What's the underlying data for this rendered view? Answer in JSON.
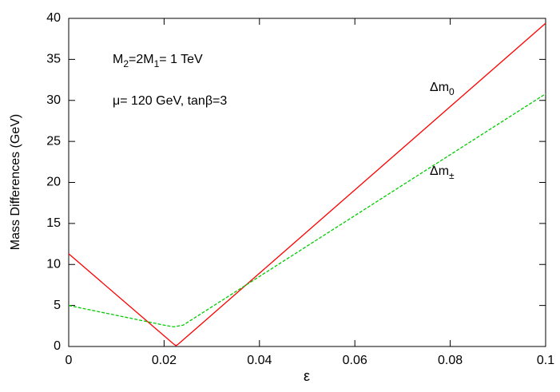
{
  "chart_data": {
    "type": "line",
    "xlabel": "ε",
    "ylabel": "Mass Differences  (GeV)",
    "xlim": [
      0,
      0.1
    ],
    "xticks": [
      0,
      0.02,
      0.04,
      0.06,
      0.08,
      0.1
    ],
    "ylim": [
      0,
      40
    ],
    "yticks": [
      0,
      5,
      10,
      15,
      20,
      25,
      30,
      35,
      40
    ],
    "annotations": [
      [
        {
          "text": "M"
        },
        {
          "text": "2",
          "sub": true
        },
        {
          "text": "=2M"
        },
        {
          "text": "1",
          "sub": true
        },
        {
          "text": "= 1 TeV"
        }
      ],
      [
        {
          "text": "μ= 120 GeV, tanβ=3"
        }
      ]
    ],
    "series": [
      {
        "label": [
          {
            "text": "Δm"
          },
          {
            "text": "0",
            "sub": true
          }
        ],
        "color": "#ff0000",
        "dashed": false,
        "x": [
          0,
          0.022,
          0.0225,
          0.023,
          0.1
        ],
        "values": [
          11.3,
          0.3,
          0.1,
          0.3,
          39.4
        ]
      },
      {
        "label": [
          {
            "text": "Δm"
          },
          {
            "text": "±",
            "sub": true
          }
        ],
        "color": "#00cc00",
        "dashed": true,
        "x": [
          0,
          0.02,
          0.022,
          0.024,
          0.1
        ],
        "values": [
          5.0,
          2.6,
          2.4,
          2.6,
          30.8
        ]
      }
    ]
  }
}
